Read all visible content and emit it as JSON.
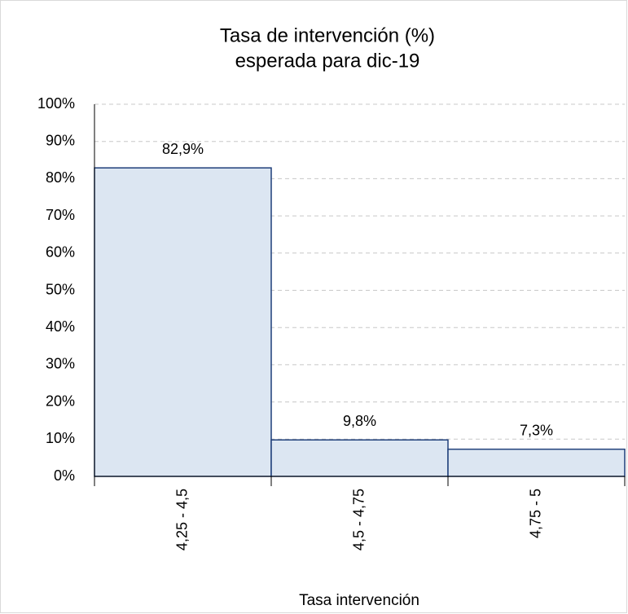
{
  "chart_data": {
    "type": "bar",
    "title": [
      "Tasa de intervención  (%)",
      "esperada para dic-19"
    ],
    "x_label": "Tasa intervención",
    "categories": [
      "4,25 - 4,5",
      "4,5 - 4,75",
      "4,75 - 5"
    ],
    "values": [
      82.9,
      9.8,
      7.3
    ],
    "value_labels": [
      "82,9%",
      "9,8%",
      "7,3%"
    ],
    "color": "#dce6f2",
    "edge_color": "#1f3f7a",
    "ylim": [
      0,
      100
    ],
    "yticks": [
      {
        "value": 0,
        "label": "0%"
      },
      {
        "value": 10,
        "label": "10%"
      },
      {
        "value": 20,
        "label": "20%"
      },
      {
        "value": 30,
        "label": "30%"
      },
      {
        "value": 40,
        "label": "40%"
      },
      {
        "value": 50,
        "label": "50%"
      },
      {
        "value": 60,
        "label": "60%"
      },
      {
        "value": 70,
        "label": "70%"
      },
      {
        "value": 80,
        "label": "80%"
      },
      {
        "value": 90,
        "label": "90%"
      },
      {
        "value": 100,
        "label": "100%"
      }
    ],
    "grid": true
  }
}
